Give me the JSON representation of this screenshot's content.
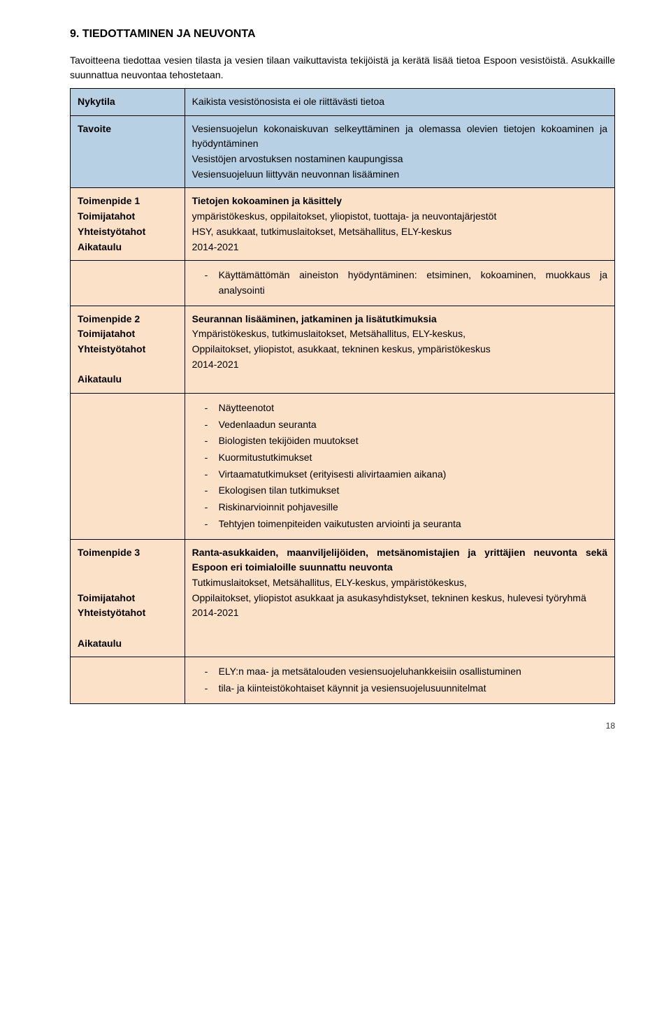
{
  "heading": "9. TIEDOTTAMINEN JA NEUVONTA",
  "intro": "Tavoitteena tiedottaa vesien tilasta ja vesien tilaan vaikuttavista tekijöistä ja kerätä lisää tietoa Espoon vesistöistä. Asukkaille suunnattua neuvontaa tehostetaan.",
  "rows": {
    "r1": {
      "label": "Nykytila",
      "text": "Kaikista vesistönosista ei ole riittävästi tietoa"
    },
    "r2": {
      "label": "Tavoite",
      "line1a": "Vesiensuojelun kokonaiskuvan selkeyttäminen ja olemassa olevien tietojen kokoaminen ja hyödyntäminen",
      "line2": "Vesistöjen arvostuksen nostaminen kaupungissa",
      "line3": "Vesiensuojeluun liittyvän neuvonnan lisääminen"
    },
    "r3": {
      "label1": "Toimenpide 1",
      "label2": "Toimijatahot",
      "label3": "Yhteistyötahot",
      "label4": "Aikataulu",
      "title": "Tietojen kokoaminen ja käsittely",
      "actors": "ympäristökeskus, oppilaitokset, yliopistot, tuottaja- ja neuvontajärjestöt",
      "coop": "HSY, asukkaat, tutkimuslaitokset, Metsähallitus, ELY-keskus",
      "schedule": "2014-2021"
    },
    "r4": {
      "b1": "Käyttämättömän aineiston hyödyntäminen: etsiminen, kokoaminen, muokkaus ja analysointi"
    },
    "r5": {
      "label1": "Toimenpide 2",
      "label2": "Toimijatahot",
      "label3": "Yhteistyötahot",
      "label4": "Aikataulu",
      "title": "Seurannan lisääminen, jatkaminen ja lisätutkimuksia",
      "actors": "Ympäristökeskus, tutkimuslaitokset, Metsähallitus, ELY-keskus,",
      "coop": "Oppilaitokset, yliopistot, asukkaat, tekninen keskus, ympäristökeskus",
      "schedule": "2014-2021"
    },
    "r6": {
      "b1": "Näytteenotot",
      "b2": "Vedenlaadun seuranta",
      "b3": "Biologisten tekijöiden muutokset",
      "b4": "Kuormitustutkimukset",
      "b5": "Virtaamatutkimukset (erityisesti alivirtaamien aikana)",
      "b6": "Ekologisen tilan tutkimukset",
      "b7": "Riskinarvioinnit pohjavesille",
      "b8": "Tehtyjen toimenpiteiden vaikutusten arviointi ja seuranta"
    },
    "r7": {
      "label1": "Toimenpide 3",
      "label2": "Toimijatahot",
      "label3": "Yhteistyötahot",
      "label4": "Aikataulu",
      "title": "Ranta-asukkaiden, maanviljelijöiden, metsänomistajien ja yrittäjien neuvonta sekä Espoon eri toimialoille suunnattu neuvonta",
      "actors": "Tutkimuslaitokset, Metsähallitus, ELY-keskus, ympäristökeskus,",
      "coop": "Oppilaitokset, yliopistot asukkaat ja asukasyhdistykset, tekninen keskus, hulevesi työryhmä",
      "schedule": "2014-2021"
    },
    "r8": {
      "b1": "ELY:n maa- ja metsätalouden vesiensuojeluhankkeisiin osallistuminen",
      "b2": "tila- ja kiinteistökohtaiset käynnit ja vesiensuojelusuunnitelmat"
    }
  },
  "page": "18",
  "colors": {
    "blue": "#b7d0e3",
    "peach": "#fbe1c8"
  }
}
